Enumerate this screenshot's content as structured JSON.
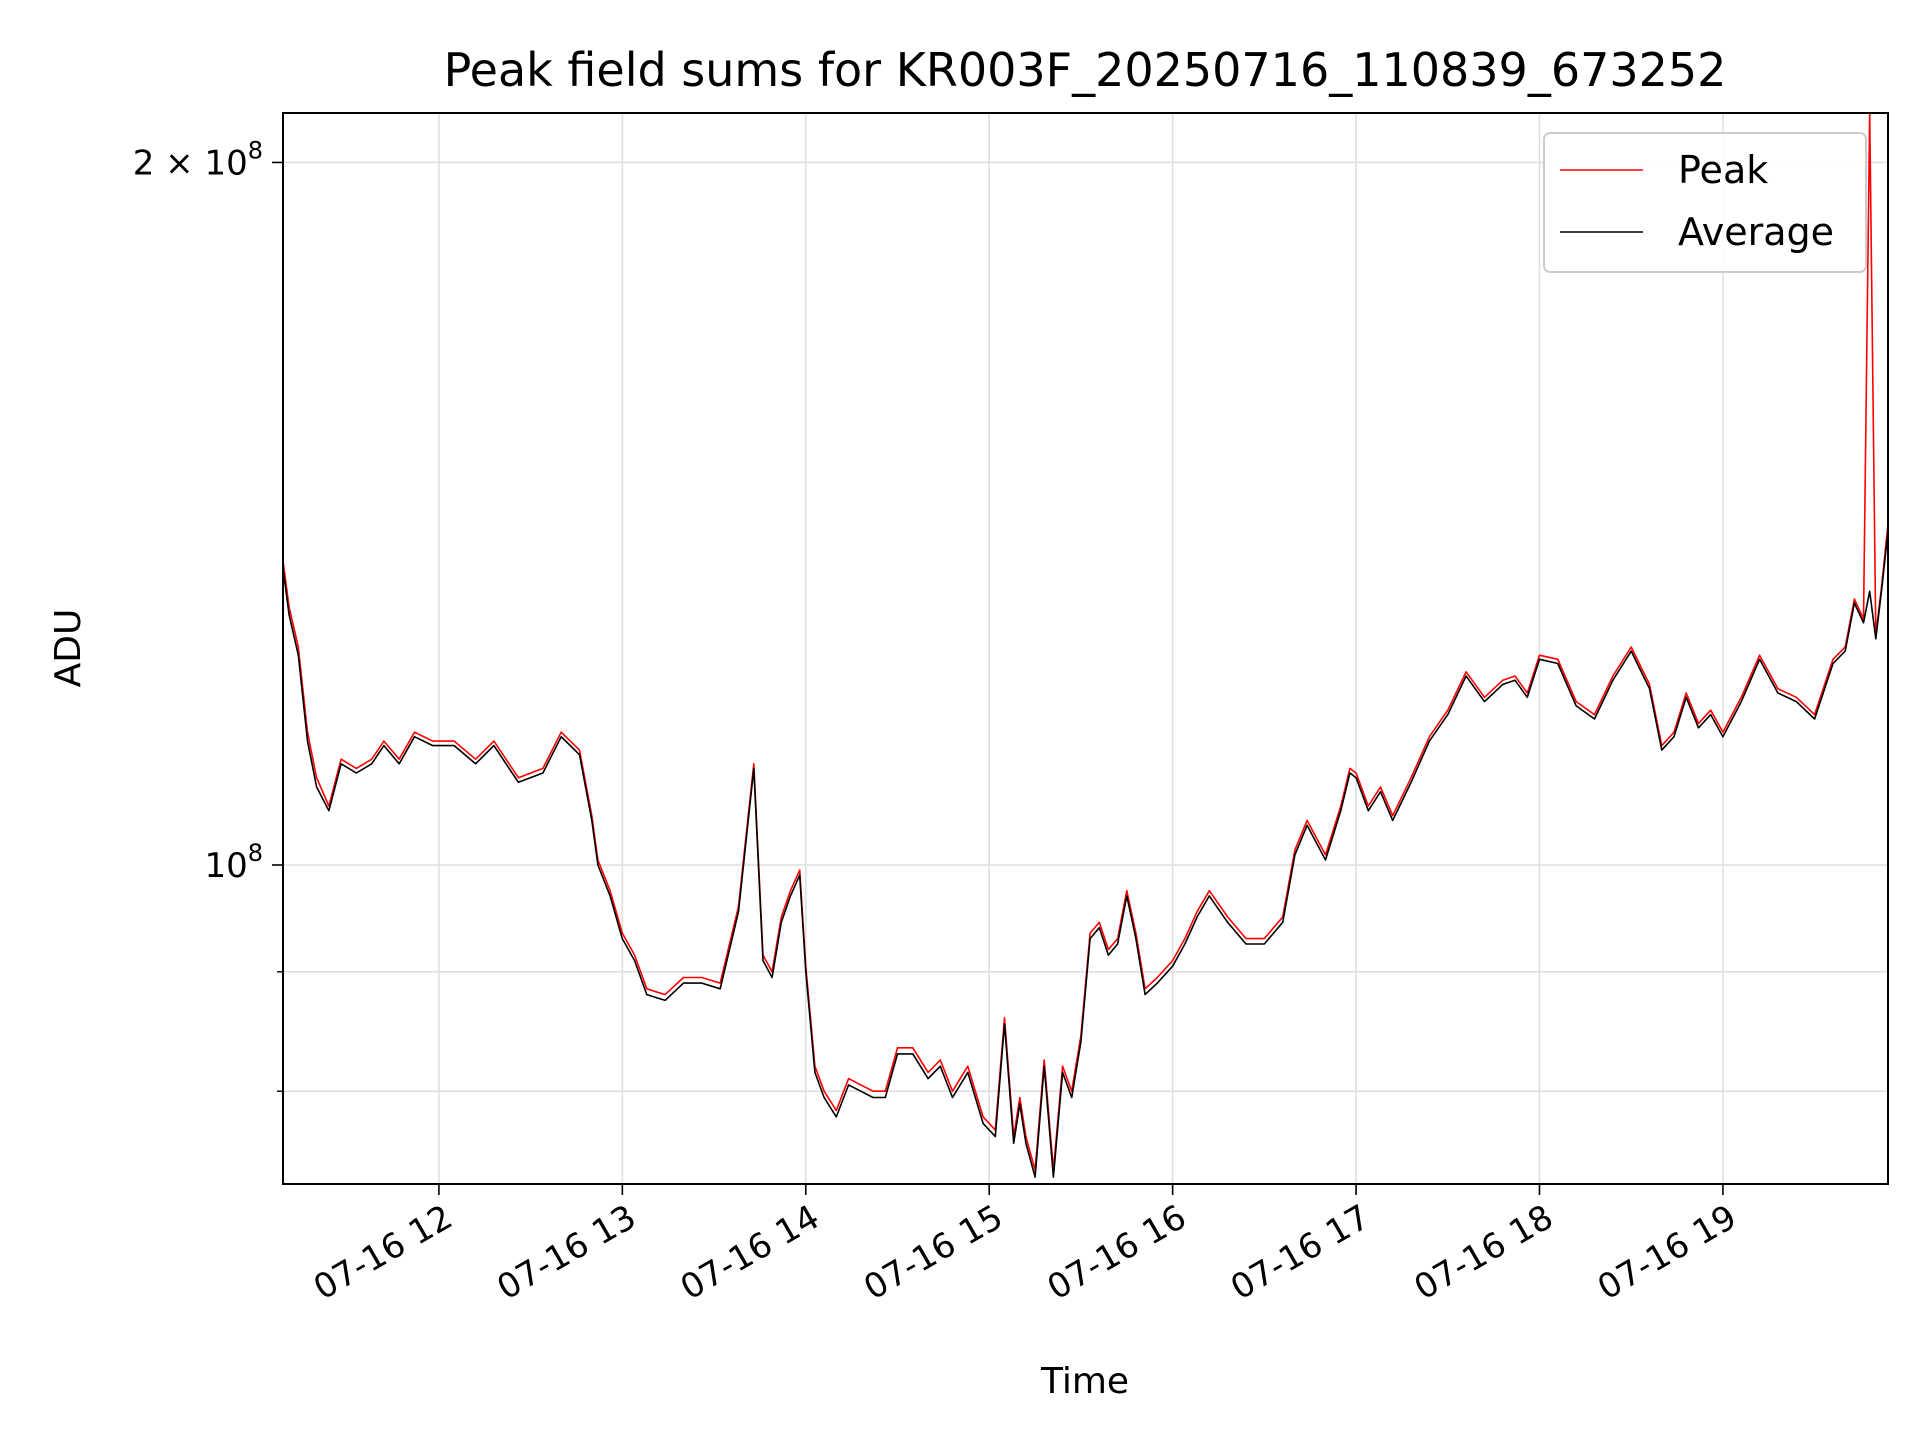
{
  "chart_data": {
    "type": "line",
    "title": "Peak field sums for KR003F_20250716_110839_673252",
    "xlabel": "Time",
    "ylabel": "ADU",
    "yscale": "log",
    "grid": true,
    "legend_position": "top-right",
    "x_ticks": [
      {
        "value": "2025-07-16T12:00",
        "label": "07-16 12"
      },
      {
        "value": "2025-07-16T13:00",
        "label": "07-16 13"
      },
      {
        "value": "2025-07-16T14:00",
        "label": "07-16 14"
      },
      {
        "value": "2025-07-16T15:00",
        "label": "07-16 15"
      },
      {
        "value": "2025-07-16T16:00",
        "label": "07-16 16"
      },
      {
        "value": "2025-07-16T17:00",
        "label": "07-16 17"
      },
      {
        "value": "2025-07-16T18:00",
        "label": "07-16 18"
      },
      {
        "value": "2025-07-16T19:00",
        "label": "07-16 19"
      }
    ],
    "y_ticks": [
      {
        "value": 100000000,
        "label_base": "10",
        "label_exp": "8",
        "label_prefix": ""
      },
      {
        "value": 200000000,
        "label_base": "10",
        "label_exp": "8",
        "label_prefix": "2 × "
      }
    ],
    "xlim": [
      "2025-07-16T11:09",
      "2025-07-16T19:54"
    ],
    "ylim": [
      73000000,
      210000000
    ],
    "series": [
      {
        "name": "Peak",
        "color": "#ff0000",
        "x": [
          "11:09",
          "11:11",
          "11:14",
          "11:17",
          "11:20",
          "11:24",
          "11:28",
          "11:33",
          "11:38",
          "11:42",
          "11:47",
          "11:52",
          "11:58",
          "12:05",
          "12:12",
          "12:18",
          "12:26",
          "12:34",
          "12:40",
          "12:46",
          "12:50",
          "12:52",
          "12:56",
          "13:00",
          "13:04",
          "13:08",
          "13:14",
          "13:20",
          "13:26",
          "13:32",
          "13:38",
          "13:43",
          "13:46",
          "13:49",
          "13:52",
          "13:55",
          "13:58",
          "14:00",
          "14:03",
          "14:06",
          "14:10",
          "14:14",
          "14:18",
          "14:22",
          "14:26",
          "14:30",
          "14:35",
          "14:40",
          "14:44",
          "14:48",
          "14:53",
          "14:58",
          "15:02",
          "15:05",
          "15:08",
          "15:10",
          "15:12",
          "15:15",
          "15:18",
          "15:21",
          "15:24",
          "15:27",
          "15:30",
          "15:33",
          "15:36",
          "15:39",
          "15:42",
          "15:45",
          "15:48",
          "15:51",
          "15:55",
          "16:00",
          "16:04",
          "16:08",
          "16:12",
          "16:18",
          "16:24",
          "16:30",
          "16:36",
          "16:40",
          "16:44",
          "16:50",
          "16:55",
          "16:58",
          "17:00",
          "17:04",
          "17:08",
          "17:12",
          "17:18",
          "17:24",
          "17:30",
          "17:36",
          "17:42",
          "17:48",
          "17:52",
          "17:56",
          "18:00",
          "18:06",
          "18:12",
          "18:18",
          "18:24",
          "18:30",
          "18:36",
          "18:40",
          "18:44",
          "18:48",
          "18:52",
          "18:56",
          "19:00",
          "19:06",
          "19:12",
          "19:18",
          "19:24",
          "19:30",
          "19:36",
          "19:40",
          "19:43",
          "19:46",
          "19:48",
          "19:50",
          "19:52",
          "19:54"
        ],
        "values": [
          135000000,
          129000000,
          124000000,
          114000000,
          109000000,
          106000000,
          111000000,
          110000000,
          111000000,
          113000000,
          111000000,
          114000000,
          113000000,
          113000000,
          111000000,
          113000000,
          109000000,
          110000000,
          114000000,
          112000000,
          105000000,
          100500000,
          97500000,
          93500000,
          91500000,
          88500000,
          88000000,
          89500000,
          89500000,
          89000000,
          96000000,
          110500000,
          91500000,
          90000000,
          95000000,
          97500000,
          99500000,
          90500000,
          82000000,
          80000000,
          78500000,
          81000000,
          80500000,
          80000000,
          80000000,
          83500000,
          83500000,
          81500000,
          82500000,
          80000000,
          82000000,
          78000000,
          77000000,
          86000000,
          76500000,
          79500000,
          76500000,
          74000000,
          82500000,
          74000000,
          82000000,
          80000000,
          84500000,
          93500000,
          94500000,
          92000000,
          93000000,
          97500000,
          93500000,
          88500000,
          89500000,
          91000000,
          93000000,
          95500000,
          97500000,
          95000000,
          93000000,
          93000000,
          95000000,
          101500000,
          104500000,
          101000000,
          106000000,
          110000000,
          109500000,
          106000000,
          108000000,
          105000000,
          109000000,
          113500000,
          116500000,
          121000000,
          118000000,
          120000000,
          120500000,
          118500000,
          123000000,
          122500000,
          117500000,
          116000000,
          120500000,
          124000000,
          119500000,
          112500000,
          114000000,
          118500000,
          115000000,
          116500000,
          114000000,
          118000000,
          123000000,
          119000000,
          118000000,
          116000000,
          122500000,
          124000000,
          130000000,
          127500000,
          210000000,
          125500000,
          132000000,
          140000000
        ]
      },
      {
        "name": "Average",
        "color": "#000000",
        "x": [
          "11:09",
          "11:11",
          "11:14",
          "11:17",
          "11:20",
          "11:24",
          "11:28",
          "11:33",
          "11:38",
          "11:42",
          "11:47",
          "11:52",
          "11:58",
          "12:05",
          "12:12",
          "12:18",
          "12:26",
          "12:34",
          "12:40",
          "12:46",
          "12:50",
          "12:52",
          "12:56",
          "13:00",
          "13:04",
          "13:08",
          "13:14",
          "13:20",
          "13:26",
          "13:32",
          "13:38",
          "13:43",
          "13:46",
          "13:49",
          "13:52",
          "13:55",
          "13:58",
          "14:00",
          "14:03",
          "14:06",
          "14:10",
          "14:14",
          "14:18",
          "14:22",
          "14:26",
          "14:30",
          "14:35",
          "14:40",
          "14:44",
          "14:48",
          "14:53",
          "14:58",
          "15:02",
          "15:05",
          "15:08",
          "15:10",
          "15:12",
          "15:15",
          "15:18",
          "15:21",
          "15:24",
          "15:27",
          "15:30",
          "15:33",
          "15:36",
          "15:39",
          "15:42",
          "15:45",
          "15:48",
          "15:51",
          "15:55",
          "16:00",
          "16:04",
          "16:08",
          "16:12",
          "16:18",
          "16:24",
          "16:30",
          "16:36",
          "16:40",
          "16:44",
          "16:50",
          "16:55",
          "16:58",
          "17:00",
          "17:04",
          "17:08",
          "17:12",
          "17:18",
          "17:24",
          "17:30",
          "17:36",
          "17:42",
          "17:48",
          "17:52",
          "17:56",
          "18:00",
          "18:06",
          "18:12",
          "18:18",
          "18:24",
          "18:30",
          "18:36",
          "18:40",
          "18:44",
          "18:48",
          "18:52",
          "18:56",
          "19:00",
          "19:06",
          "19:12",
          "19:18",
          "19:24",
          "19:30",
          "19:36",
          "19:40",
          "19:43",
          "19:46",
          "19:48",
          "19:50",
          "19:52",
          "19:54"
        ],
        "values": [
          134000000,
          128000000,
          123000000,
          113000000,
          108000000,
          105500000,
          110500000,
          109500000,
          110500000,
          112500000,
          110500000,
          113500000,
          112500000,
          112500000,
          110500000,
          112500000,
          108500000,
          109500000,
          113500000,
          111500000,
          104500000,
          100000000,
          97000000,
          93000000,
          91000000,
          88000000,
          87500000,
          89000000,
          89000000,
          88500000,
          95500000,
          110000000,
          91000000,
          89500000,
          94500000,
          97000000,
          99000000,
          90000000,
          81500000,
          79500000,
          78000000,
          80500000,
          80000000,
          79500000,
          79500000,
          83000000,
          83000000,
          81000000,
          82000000,
          79500000,
          81500000,
          77500000,
          76500000,
          85500000,
          76000000,
          79000000,
          76000000,
          73500000,
          82000000,
          73500000,
          81500000,
          79500000,
          84000000,
          93000000,
          94000000,
          91500000,
          92500000,
          97000000,
          93000000,
          88000000,
          89000000,
          90500000,
          92500000,
          95000000,
          97000000,
          94500000,
          92500000,
          92500000,
          94500000,
          101000000,
          104000000,
          100500000,
          105500000,
          109500000,
          109000000,
          105500000,
          107500000,
          104500000,
          108500000,
          113000000,
          116000000,
          120500000,
          117500000,
          119500000,
          120000000,
          118000000,
          122500000,
          122000000,
          117000000,
          115500000,
          120000000,
          123500000,
          119000000,
          112000000,
          113500000,
          118000000,
          114500000,
          116000000,
          113500000,
          117500000,
          122500000,
          118500000,
          117500000,
          115500000,
          122000000,
          123500000,
          129500000,
          127000000,
          131000000,
          125000000,
          131500000,
          139000000
        ]
      }
    ]
  }
}
